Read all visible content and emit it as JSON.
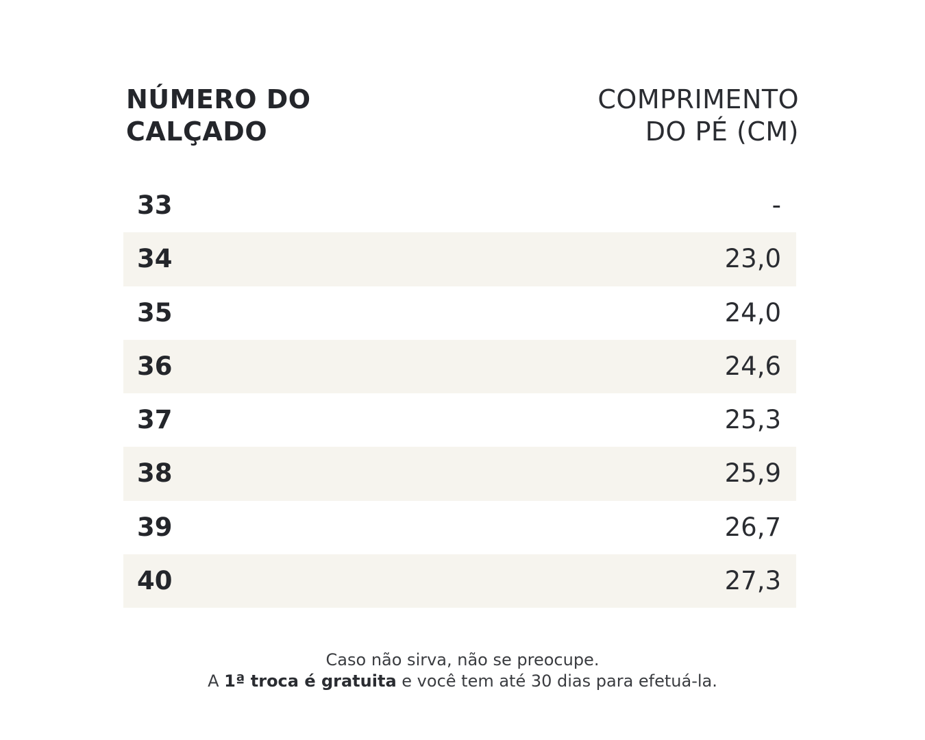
{
  "table": {
    "headers": [
      [
        "NÚMERO DO",
        "CALÇADO"
      ],
      [
        "COMPRIMENTO",
        "DO PÉ (CM)"
      ]
    ],
    "rows": [
      [
        "33",
        "-"
      ],
      [
        "34",
        "23,0"
      ],
      [
        "35",
        "24,0"
      ],
      [
        "36",
        "24,6"
      ],
      [
        "37",
        "25,3"
      ],
      [
        "38",
        "25,9"
      ],
      [
        "39",
        "26,7"
      ],
      [
        "40",
        "27,3"
      ]
    ]
  },
  "footer": {
    "line1": "Caso não sirva, não se preocupe.",
    "line2": {
      "before": "A",
      "bold": "1ª troca é gratuita",
      "after": "e você tem até 30 dias para efetuá-la."
    }
  }
}
